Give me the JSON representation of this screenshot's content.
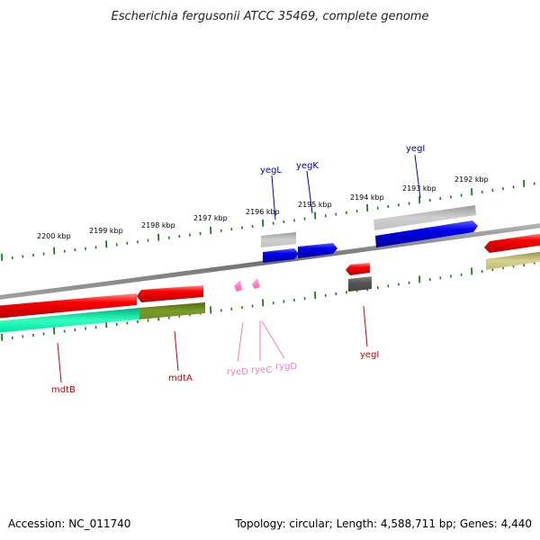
{
  "title": "Escherichia fergusonii ATCC 35469, complete genome",
  "footer": {
    "accession": "Accession: NC_011740",
    "summary": "Topology: circular; Length: 4,588,711 bp; Genes: 4,440"
  },
  "ruler_labels": [
    "2200 kbp",
    "2199 kbp",
    "2198 kbp",
    "2197 kbp",
    "2196 kbp",
    "2195 kbp",
    "2194 kbp",
    "2193 kbp",
    "2192 kbp"
  ],
  "genes_top": [
    "yegL",
    "yegK",
    "yegI"
  ],
  "genes_bottom": [
    "mdtB",
    "mdtA",
    "ryeD",
    "ryeC",
    "rygD",
    "yegI"
  ],
  "colors": {
    "backbone": "#808080",
    "cds_red": "#ff0000",
    "cds_blue": "#0000ff",
    "gray_feature": "#a9a9a9",
    "dark_gray_feature": "#555555",
    "teal_feature": "#00e3a0",
    "olive_feature": "#6b8e23",
    "khaki_feature": "#b5b06a",
    "rna_pink": "#ff80c0",
    "ruler_green": "#1a7a1a",
    "label_blue": "#0000aa",
    "label_red": "#cc0000",
    "label_pink": "#ff66aa"
  }
}
